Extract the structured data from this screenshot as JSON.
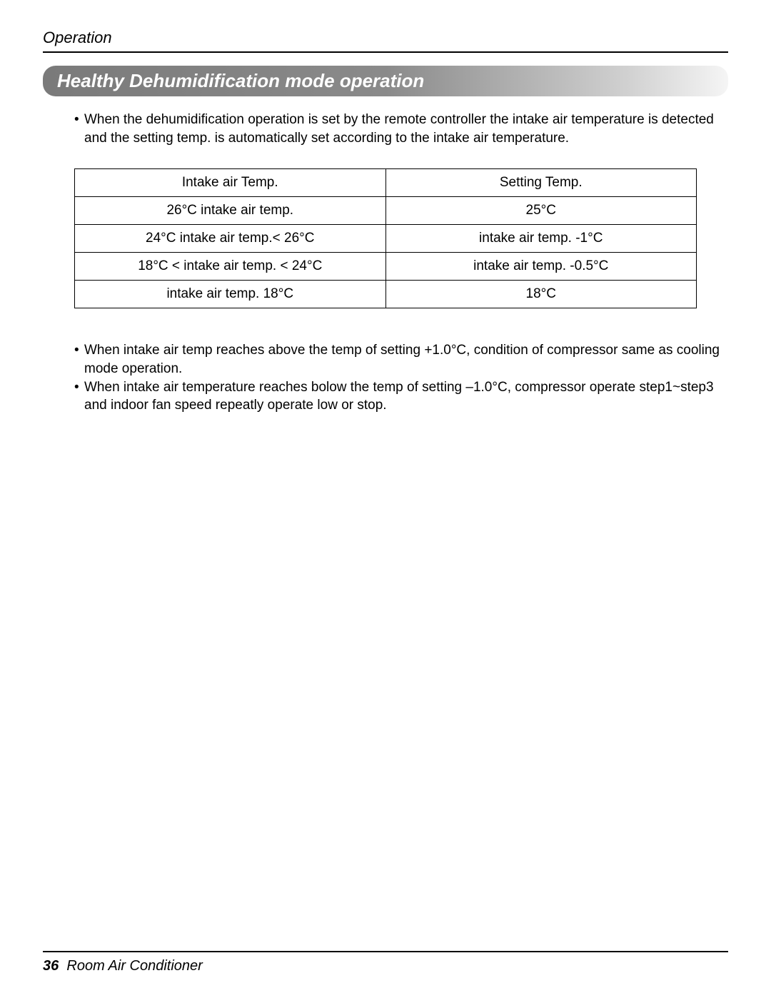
{
  "header": {
    "section": "Operation"
  },
  "titleBar": {
    "text": "Healthy Dehumidification mode operation"
  },
  "intro": {
    "bullet1": "When the dehumidification operation is set by the remote controller the intake air temperature is detected and the setting temp. is automatically set according to the intake air temperature."
  },
  "table": {
    "columns": [
      "Intake air Temp.",
      "Setting Temp."
    ],
    "rows": [
      [
        "26°C   intake air temp.",
        "25°C"
      ],
      [
        "24°C   intake air temp.< 26°C",
        "intake air temp. -1°C"
      ],
      [
        "18°C < intake air temp. < 24°C",
        "intake air temp. -0.5°C"
      ],
      [
        "intake air temp.   18°C",
        "18°C"
      ]
    ]
  },
  "notes": {
    "bullet1": "When intake air temp reaches above the temp of setting +1.0°C, condition of compressor same as cooling mode operation.",
    "bullet2": "When intake air temperature reaches bolow the temp of setting –1.0°C, compressor operate step1~step3 and indoor fan speed repeatly operate low or stop."
  },
  "footer": {
    "pageNumber": "36",
    "title": "Room Air Conditioner"
  }
}
